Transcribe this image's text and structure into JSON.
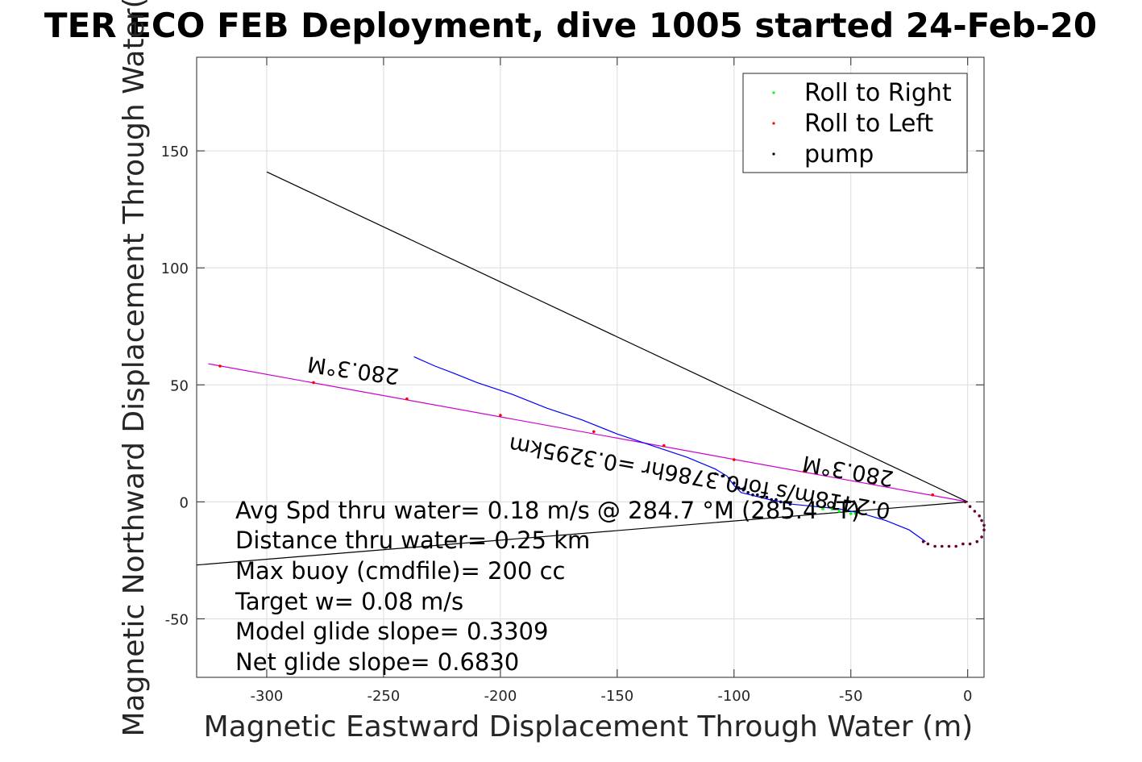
{
  "chart_data": {
    "type": "scatter",
    "title": "TER ECO FEB Deployment, dive 1005 started 24-Feb-20",
    "xlabel": "Magnetic Eastward Displacement Through Water (m)",
    "ylabel": "Magnetic Northward Displacement Through Water(",
    "xlim": [
      -330,
      7
    ],
    "ylim": [
      -75,
      190
    ],
    "xticks": [
      -300,
      -250,
      -200,
      -150,
      -100,
      -50,
      0
    ],
    "yticks": [
      -50,
      0,
      50,
      100,
      150
    ],
    "grid": true,
    "legend_position": "top-right",
    "legend": [
      {
        "name": "Roll to Right",
        "color": "#00ff00"
      },
      {
        "name": "Roll to Left",
        "color": "#ff0000"
      },
      {
        "name": "pump",
        "color": "#000000"
      }
    ],
    "annotations": [
      "Avg Spd thru water=  0.18 m/s @ 284.7 °M (285.4 °T)",
      "Distance thru water=  0.25 km",
      "Max buoy (cmdfile)= 200 cc",
      "Target w= 0.08 m/s",
      "Model glide slope= 0.3309",
      "Net glide slope= 0.6830"
    ],
    "rotated_labels": {
      "heading_far": "280.3°M",
      "heading_near": "280.3°M",
      "distance": "0.2418m/s for0.3786hr =0.3295km"
    },
    "lines": {
      "heading_line": {
        "color": "#cc00cc",
        "x": [
          -325,
          0
        ],
        "y": [
          59,
          0
        ]
      },
      "current_line": {
        "color": "#000000",
        "x": [
          -300,
          0
        ],
        "y": [
          141,
          0
        ]
      },
      "avg_line": {
        "color": "#000000",
        "x": [
          -330,
          0
        ],
        "y": [
          -27,
          0
        ]
      },
      "track": {
        "color": "#0000ff",
        "x": [
          -237,
          -228,
          -220,
          -210,
          -195,
          -180,
          -165,
          -150,
          -135,
          -120,
          -108,
          -103,
          -100,
          -97,
          -93,
          -85,
          -75,
          -65,
          -55,
          -45,
          -35,
          -25,
          -18
        ],
        "y": [
          62,
          58,
          55,
          51,
          46,
          40,
          35,
          29,
          24,
          19,
          14,
          11,
          7,
          4,
          3,
          1,
          -1,
          -2,
          -3,
          -5,
          -8,
          -12,
          -17
        ]
      }
    },
    "markers": {
      "pump_near": {
        "color": "#000033",
        "x": [
          -108,
          -105,
          -102,
          -100,
          -98,
          -96,
          -94,
          -92,
          -90,
          -88,
          -86,
          -84,
          -82,
          -80,
          -78,
          -76
        ],
        "y": [
          12,
          11,
          10,
          8,
          6,
          5,
          4,
          3,
          3,
          2,
          2,
          1,
          1,
          0,
          0,
          -1
        ]
      },
      "pump_loop": {
        "color": "#660033",
        "x": [
          -1,
          1,
          3,
          5,
          6,
          7,
          7,
          6,
          4,
          1,
          -2,
          -5,
          -8,
          -11,
          -14,
          -17,
          -19
        ],
        "y": [
          0,
          -2,
          -4,
          -6,
          -8,
          -10,
          -12,
          -15,
          -17,
          -18,
          -18,
          -19,
          -19,
          -19,
          -19,
          -18,
          -17
        ]
      },
      "roll_right": {
        "color": "#00ff00",
        "x": [
          -62,
          -58,
          -55,
          -52,
          -50,
          -48
        ],
        "y": [
          -3,
          -3,
          -4,
          -4,
          -5,
          -5
        ]
      },
      "roll_left_line": {
        "color": "#ff0000",
        "x": [
          -320,
          -280,
          -240,
          -200,
          -160,
          -130,
          -100,
          -70,
          -40,
          -15
        ],
        "y": [
          58,
          51,
          44,
          37,
          30,
          24,
          18,
          13,
          8,
          3
        ]
      }
    }
  }
}
